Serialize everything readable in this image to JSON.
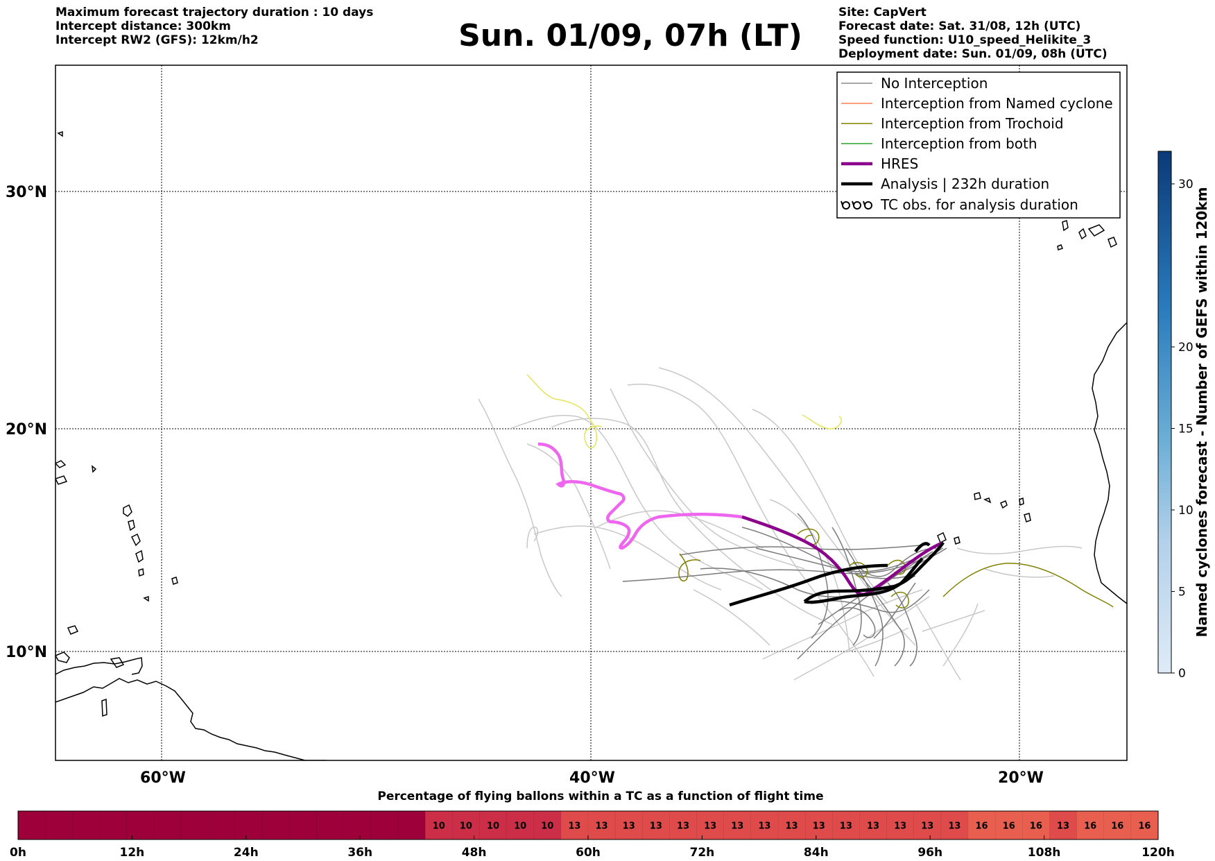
{
  "header": {
    "left": [
      "Maximum forecast trajectory duration : 10 days",
      "Intercept distance: 300km",
      "Intercept RW2 (GFS):  12km/h2"
    ],
    "title": "Sun. 01/09, 07h (LT)",
    "right": [
      "Site: CapVert",
      "Forecast date: Sat. 31/08, 12h (UTC)",
      "Speed function: U10_speed_Helikite_3",
      "Deployment date: Sun. 01/09, 08h (UTC)"
    ]
  },
  "map": {
    "lat_labels": [
      "30°N",
      "20°N",
      "10°N"
    ],
    "lon_labels": [
      "60°W",
      "40°W",
      "20°W"
    ],
    "extent": {
      "lon": [
        -65,
        -15
      ],
      "lat": [
        4.5,
        33.8
      ]
    },
    "colors": {
      "no_interception": "#8c8c8c",
      "named_cyclone": "#ff7f50",
      "trochoid": "#808000",
      "both": "#2ca02c",
      "hres": "#8b008b",
      "hres_light": "#ee66ee",
      "analysis": "#000000",
      "trochoid_light": "#e5e55a",
      "ensemble_light": "#c8c8c8"
    }
  },
  "legend": {
    "items": [
      {
        "label": "No Interception",
        "color": "#8c8c8c",
        "style": "thin-line"
      },
      {
        "label": "Interception from Named cyclone",
        "color": "#ff7f50",
        "style": "thin-line"
      },
      {
        "label": "Interception from Trochoid",
        "color": "#808000",
        "style": "thin-line"
      },
      {
        "label": "Interception from both",
        "color": "#2ca02c",
        "style": "thin-line"
      },
      {
        "label": "HRES",
        "color": "#8b008b",
        "style": "thick-line"
      },
      {
        "label": "Analysis | 232h duration",
        "color": "#000000",
        "style": "thick-line"
      },
      {
        "label": "TC obs. for analysis duration",
        "color": "#000000",
        "style": "tc-symbol"
      }
    ]
  },
  "colorbar": {
    "label": "Named cyclones forecast - Number of GEFS within 120km",
    "ticks": [
      "0",
      "5",
      "10",
      "15",
      "20",
      "30"
    ],
    "tick_values": [
      0,
      5,
      10,
      15,
      20,
      30
    ],
    "range": [
      0,
      32
    ]
  },
  "timeline": {
    "title": "Percentage of flying ballons within a TC as a function of flight time",
    "ticks": [
      "0h",
      "12h",
      "24h",
      "36h",
      "48h",
      "60h",
      "72h",
      "84h",
      "96h",
      "108h",
      "120h"
    ],
    "cells": [
      "",
      "",
      "",
      "",
      "",
      "",
      "",
      "",
      "",
      "",
      "",
      "",
      "",
      "",
      "",
      "10",
      "10",
      "10",
      "10",
      "10",
      "13",
      "13",
      "13",
      "13",
      "13",
      "13",
      "13",
      "13",
      "13",
      "13",
      "13",
      "13",
      "13",
      "13",
      "13",
      "16",
      "16",
      "16",
      "13",
      "16",
      "16",
      "16"
    ],
    "colors": {
      "empty": "#9e003a",
      "10": "#cc2e48",
      "13": "#df4a4a",
      "16": "#e85f4f"
    }
  }
}
